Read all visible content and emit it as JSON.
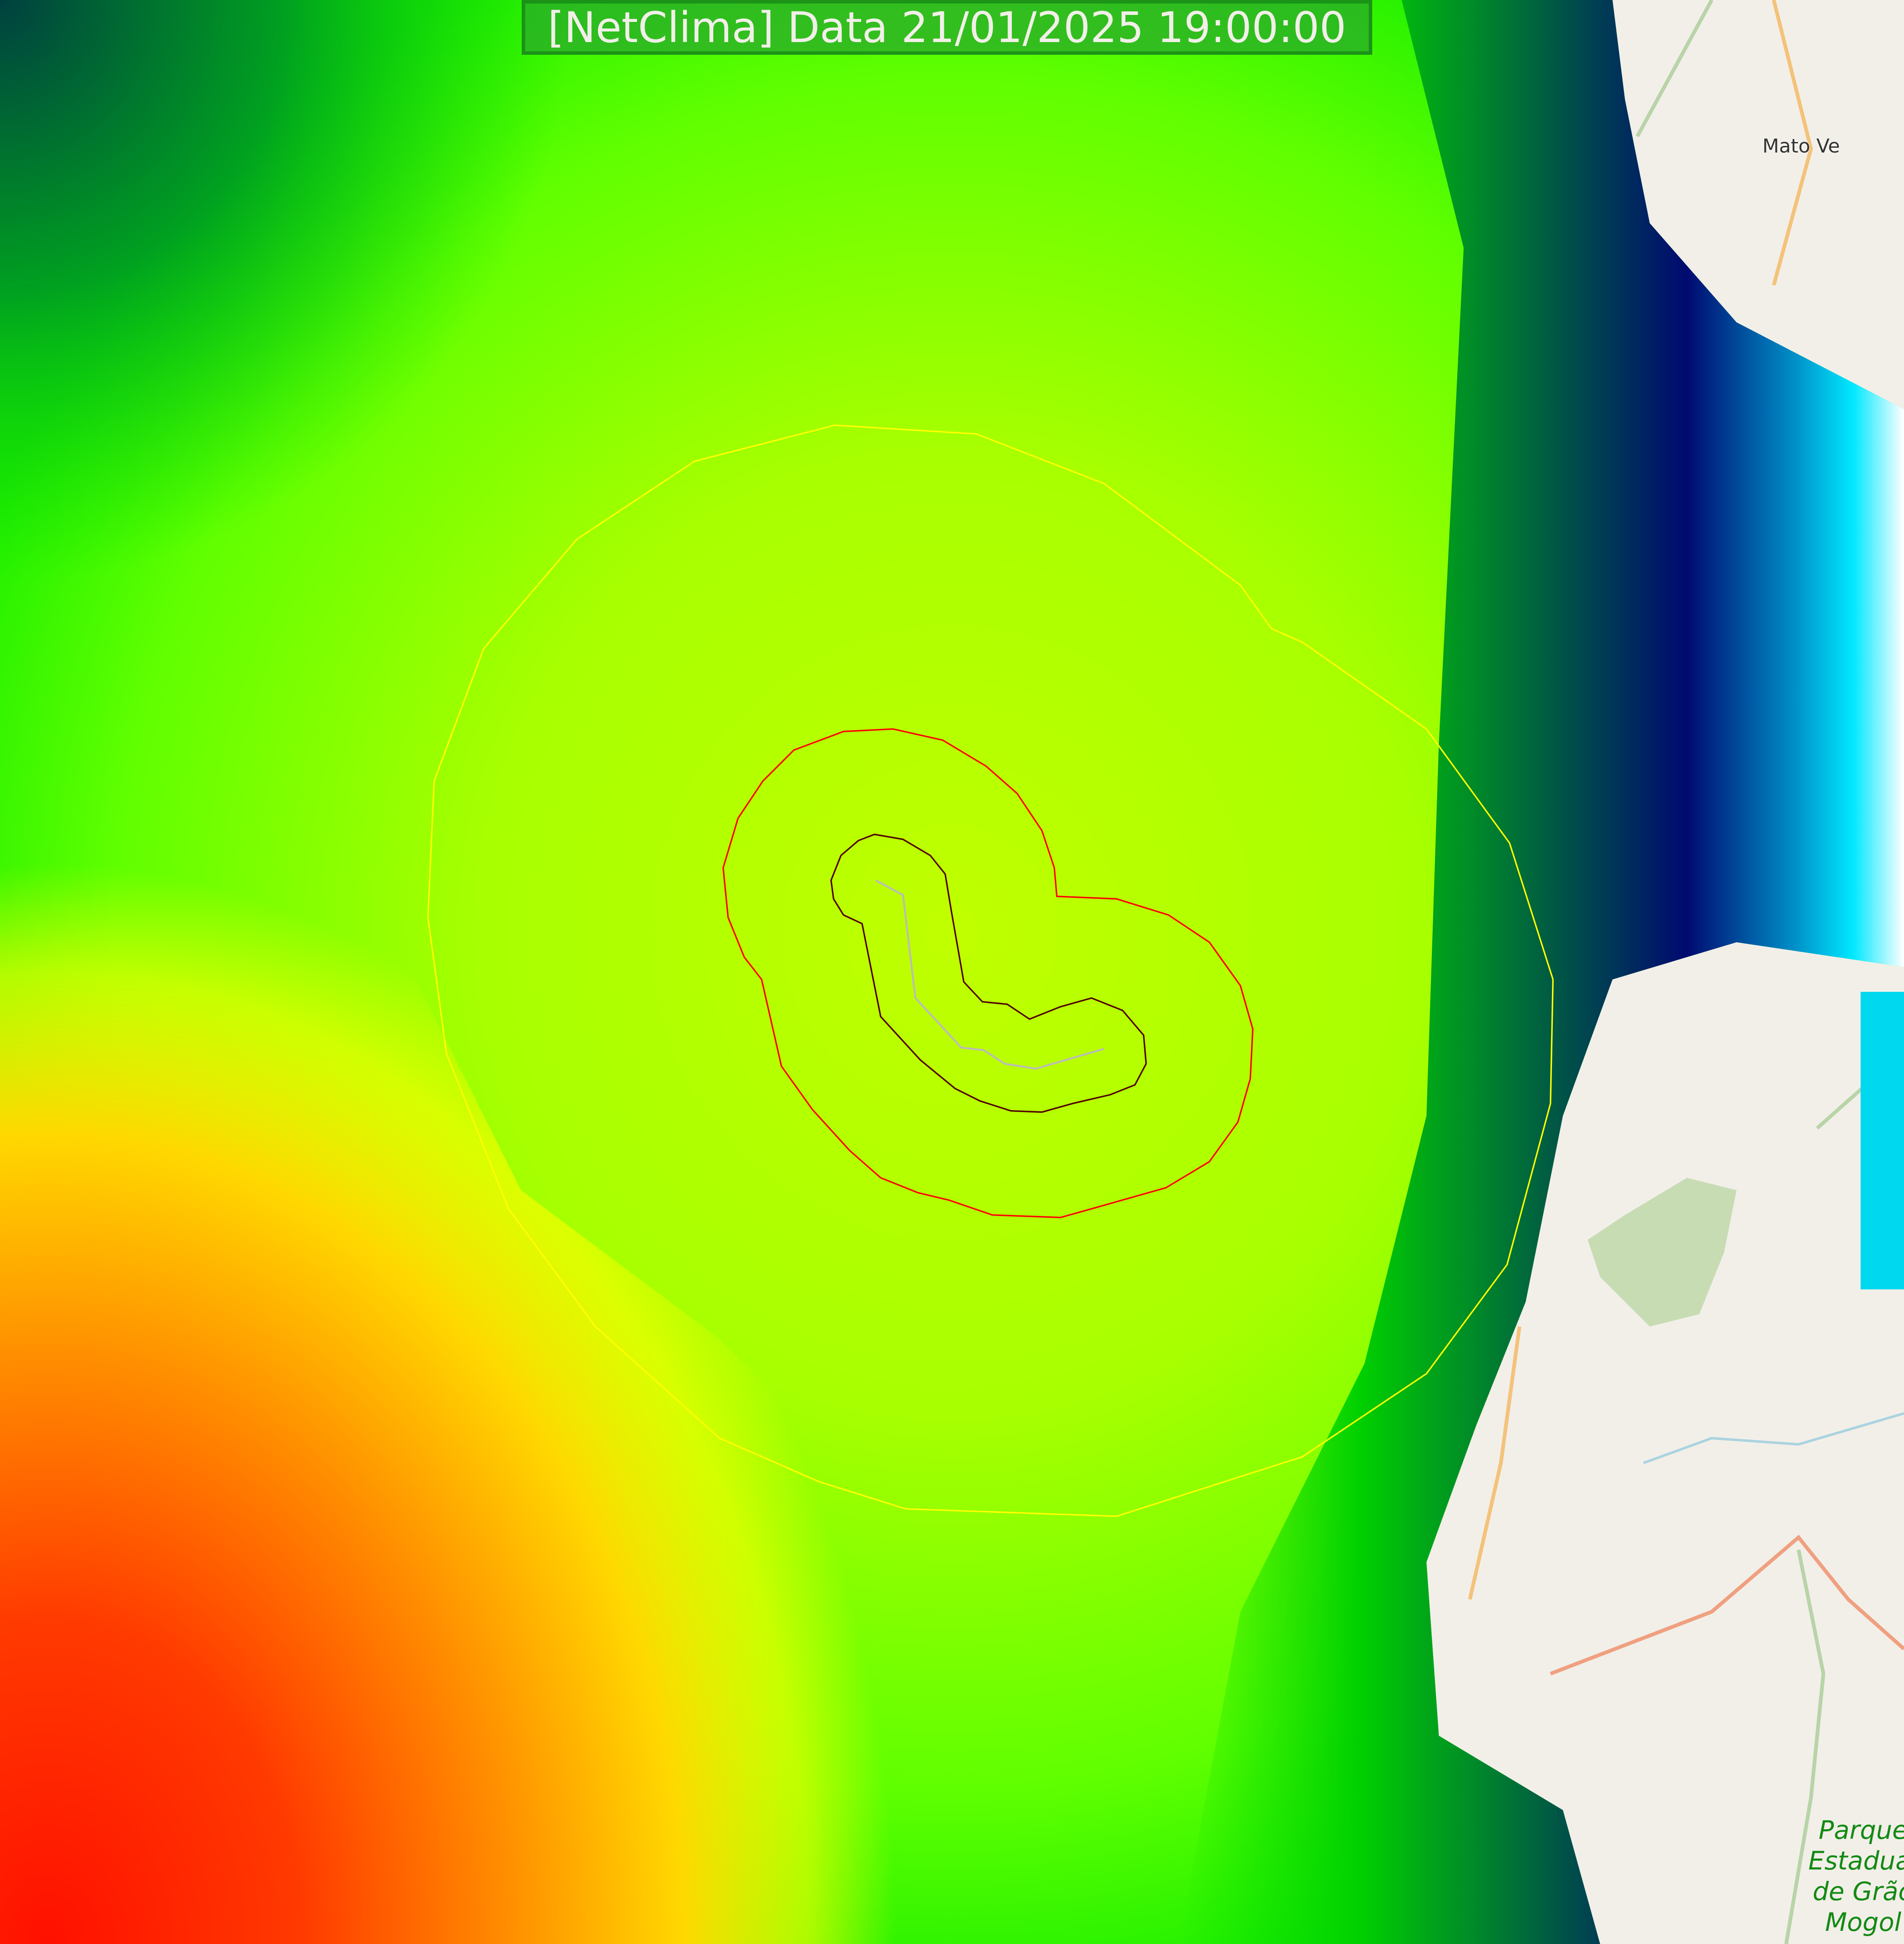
{
  "header": {
    "title": "[NetClima] Data 21/01/2025 19:00:00"
  },
  "map": {
    "places": [
      {
        "name": "Mato Ve"
      },
      {
        "name": "Parque Estadual de Grão Mogol"
      }
    ],
    "overlay_palette": [
      "#ff0000",
      "#ff6a00",
      "#ffc800",
      "#ffff00",
      "#c8ff00",
      "#7fff00",
      "#00e000",
      "#006030",
      "#000070",
      "#0090c8",
      "#00ffff",
      "#ffffff"
    ],
    "contours": [
      {
        "color": "#ffff00"
      },
      {
        "color": "#ff0000"
      },
      {
        "color": "#400000"
      }
    ],
    "basemap_colors": {
      "land": "#f2efe9",
      "park": "#c8dcb4",
      "road": "#f4c27a",
      "water": "#aad3df"
    }
  }
}
